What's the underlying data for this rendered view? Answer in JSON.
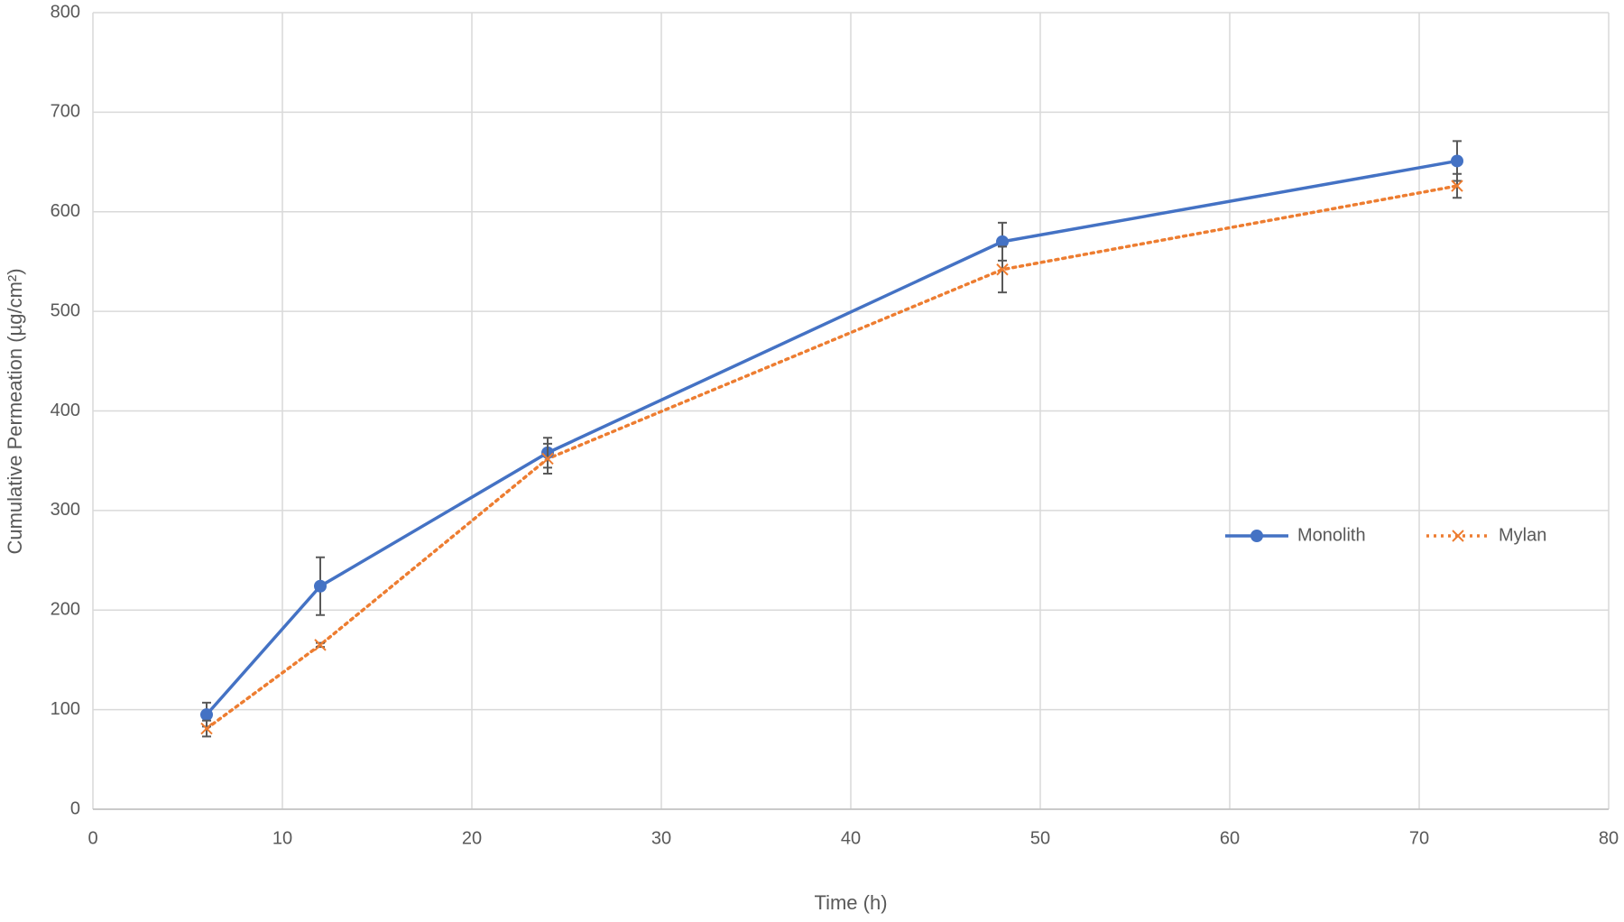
{
  "chart_data": {
    "type": "line",
    "xlabel": "Time (h)",
    "ylabel": "Cumulative Permeation (µg/cm²)",
    "x": [
      6,
      12,
      24,
      48,
      72
    ],
    "series": [
      {
        "name": "Monolith",
        "color": "#4472c4",
        "linestyle": "solid",
        "marker": "circle",
        "values": [
          95,
          224,
          358,
          570,
          651
        ],
        "errors": [
          12,
          29,
          15,
          19,
          20
        ]
      },
      {
        "name": "Mylan",
        "color": "#ed7d31",
        "linestyle": "dotted",
        "marker": "x",
        "values": [
          81,
          165,
          352,
          542,
          626
        ],
        "errors": [
          8,
          2,
          15,
          23,
          12
        ]
      }
    ],
    "xlim": [
      0,
      80
    ],
    "xticks": [
      0,
      10,
      20,
      30,
      40,
      50,
      60,
      70,
      80
    ],
    "ylim": [
      0,
      800
    ],
    "yticks": [
      0,
      100,
      200,
      300,
      400,
      500,
      600,
      700,
      800
    ],
    "grid": true,
    "legend": "right"
  }
}
